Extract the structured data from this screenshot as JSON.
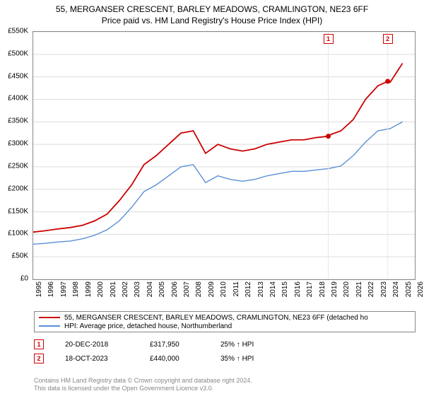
{
  "title_line1": "55, MERGANSER CRESCENT, BARLEY MEADOWS, CRAMLINGTON, NE23 6FF",
  "title_line2": "Price paid vs. HM Land Registry's House Price Index (HPI)",
  "chart": {
    "type": "line",
    "background_color": "#ffffff",
    "grid_color": "#dcdcdc",
    "border_color": "#888888",
    "xlim": [
      1995,
      2026
    ],
    "ylim": [
      0,
      550000
    ],
    "ytick_step": 50000,
    "ytick_labels": [
      "£0",
      "£50K",
      "£100K",
      "£150K",
      "£200K",
      "£250K",
      "£300K",
      "£350K",
      "£400K",
      "£450K",
      "£500K",
      "£550K"
    ],
    "xtick_step": 1,
    "xtick_labels": [
      "1995",
      "1996",
      "1997",
      "1998",
      "1999",
      "2000",
      "2001",
      "2002",
      "2003",
      "2004",
      "2005",
      "2006",
      "2007",
      "2008",
      "2009",
      "2010",
      "2011",
      "2012",
      "2013",
      "2014",
      "2015",
      "2016",
      "2017",
      "2018",
      "2019",
      "2020",
      "2021",
      "2022",
      "2023",
      "2024",
      "2025",
      "2026"
    ],
    "series": [
      {
        "name": "property",
        "label": "55, MERGANSER CRESCENT, BARLEY MEADOWS, CRAMLINGTON, NE23 6FF (detached ho",
        "color": "#cc0000",
        "line_width": 1.8,
        "x": [
          1995,
          1996,
          1997,
          1998,
          1999,
          2000,
          2001,
          2002,
          2003,
          2004,
          2005,
          2006,
          2007,
          2008,
          2009,
          2010,
          2011,
          2012,
          2013,
          2014,
          2015,
          2016,
          2017,
          2018,
          2018.97,
          2019,
          2020,
          2021,
          2022,
          2023,
          2023.8,
          2024,
          2025
        ],
        "y": [
          105000,
          108000,
          112000,
          115000,
          120000,
          130000,
          145000,
          175000,
          210000,
          255000,
          275000,
          300000,
          325000,
          330000,
          280000,
          300000,
          290000,
          285000,
          290000,
          300000,
          305000,
          310000,
          310000,
          315000,
          317950,
          320000,
          330000,
          355000,
          400000,
          430000,
          440000,
          438000,
          480000
        ]
      },
      {
        "name": "hpi",
        "label": "HPI: Average price, detached house, Northumberland",
        "color": "#5a8fd6",
        "line_width": 1.4,
        "x": [
          1995,
          1996,
          1997,
          1998,
          1999,
          2000,
          2001,
          2002,
          2003,
          2004,
          2005,
          2006,
          2007,
          2008,
          2009,
          2010,
          2011,
          2012,
          2013,
          2014,
          2015,
          2016,
          2017,
          2018,
          2019,
          2020,
          2021,
          2022,
          2023,
          2024,
          2025
        ],
        "y": [
          78000,
          80000,
          83000,
          85000,
          90000,
          98000,
          110000,
          130000,
          160000,
          195000,
          210000,
          230000,
          250000,
          255000,
          215000,
          230000,
          222000,
          218000,
          222000,
          230000,
          235000,
          240000,
          240000,
          243000,
          246000,
          252000,
          275000,
          305000,
          330000,
          335000,
          350000
        ]
      }
    ],
    "markers": [
      {
        "label": "1",
        "x": 2018.97,
        "y": 317950,
        "box_color": "#cc0000"
      },
      {
        "label": "2",
        "x": 2023.8,
        "y": 440000,
        "box_color": "#cc0000"
      }
    ]
  },
  "sales": [
    {
      "id": "1",
      "date": "20-DEC-2018",
      "price": "£317,950",
      "pct": "25% ↑ HPI"
    },
    {
      "id": "2",
      "date": "18-OCT-2023",
      "price": "£440,000",
      "pct": "35% ↑ HPI"
    }
  ],
  "footer_line1": "Contains HM Land Registry data © Crown copyright and database right 2024.",
  "footer_line2": "This data is licensed under the Open Government Licence v3.0."
}
